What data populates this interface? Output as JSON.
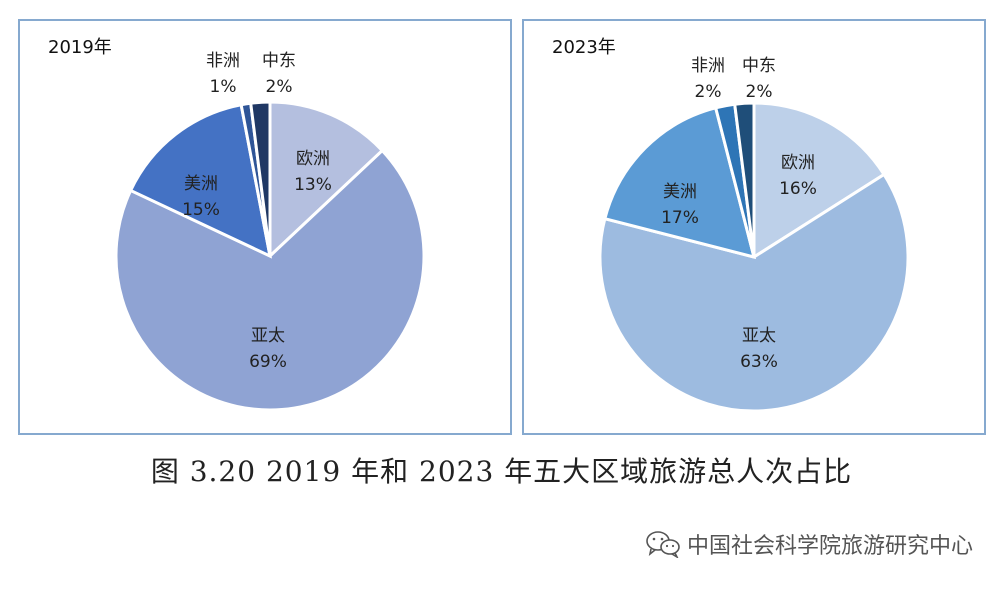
{
  "chart_data": [
    {
      "type": "pie",
      "title": "2019年",
      "slices": [
        {
          "label": "欧洲",
          "value": 13,
          "display": "13%",
          "color": "#b4bfdf"
        },
        {
          "label": "亚太",
          "value": 69,
          "display": "69%",
          "color": "#8fa3d3"
        },
        {
          "label": "美洲",
          "value": 15,
          "display": "15%",
          "color": "#4472c4"
        },
        {
          "label": "非洲",
          "value": 1,
          "display": "1%",
          "color": "#2f5597"
        },
        {
          "label": "中东",
          "value": 2,
          "display": "2%",
          "color": "#203864"
        }
      ]
    },
    {
      "type": "pie",
      "title": "2023年",
      "slices": [
        {
          "label": "欧洲",
          "value": 16,
          "display": "16%",
          "color": "#bdd0e9"
        },
        {
          "label": "亚太",
          "value": 63,
          "display": "63%",
          "color": "#9dbbe0"
        },
        {
          "label": "美洲",
          "value": 17,
          "display": "17%",
          "color": "#5b9bd5"
        },
        {
          "label": "非洲",
          "value": 2,
          "display": "2%",
          "color": "#2e75b6"
        },
        {
          "label": "中东",
          "value": 2,
          "display": "2%",
          "color": "#1f4e79"
        }
      ]
    }
  ],
  "caption": "图 3.20 2019 年和 2023 年五大区域旅游总人次占比",
  "watermark": {
    "text": "中国社会科学院旅游研究中心",
    "icon": "wechat-icon"
  }
}
